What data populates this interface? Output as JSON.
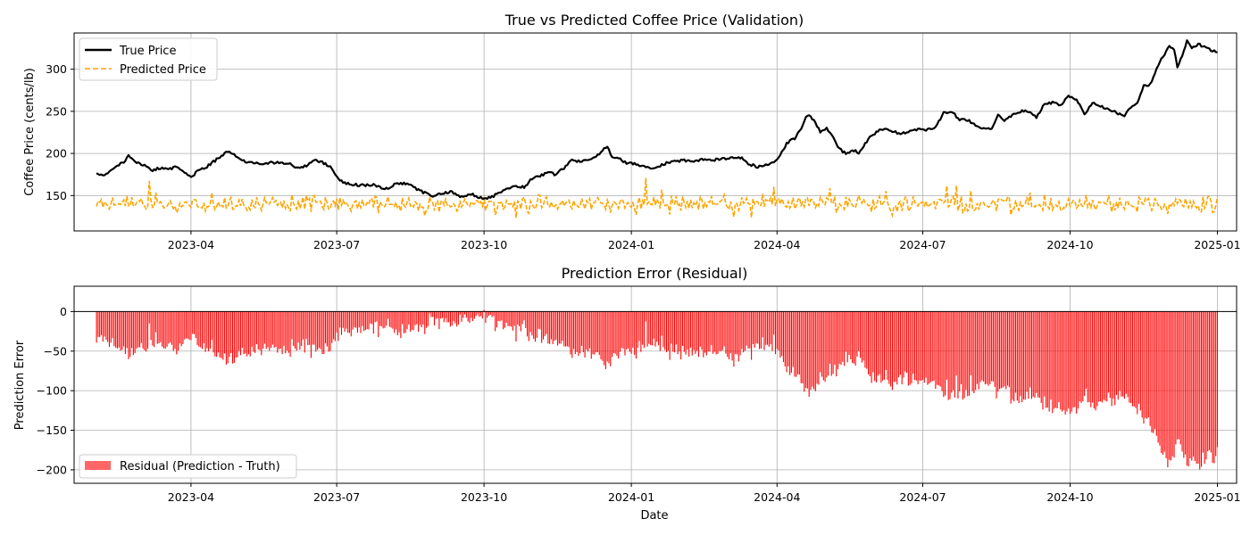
{
  "chart_data": [
    {
      "type": "line",
      "title": "True vs Predicted Coffee Price (Validation)",
      "xlabel": "",
      "ylabel": "Coffee Price (cents/lb)",
      "xlim": [
        "2023-01-18",
        "2025-01-13"
      ],
      "ylim": [
        108,
        343
      ],
      "x_ticks": [
        "2023-04",
        "2023-07",
        "2023-10",
        "2024-01",
        "2024-04",
        "2024-07",
        "2024-10",
        "2025-01"
      ],
      "y_ticks": [
        150,
        200,
        250,
        300
      ],
      "grid": true,
      "legend_position": "upper left",
      "series": [
        {
          "name": "True Price",
          "style": "solid",
          "color": "#000000",
          "points": [
            [
              "2023-02-01",
              176
            ],
            [
              "2023-02-06",
              174
            ],
            [
              "2023-02-10",
              180
            ],
            [
              "2023-02-14",
              186
            ],
            [
              "2023-02-18",
              190
            ],
            [
              "2023-02-21",
              197
            ],
            [
              "2023-02-25",
              190
            ],
            [
              "2023-03-03",
              186
            ],
            [
              "2023-03-08",
              180
            ],
            [
              "2023-03-13",
              183
            ],
            [
              "2023-03-18",
              181
            ],
            [
              "2023-03-23",
              184
            ],
            [
              "2023-03-29",
              177
            ],
            [
              "2023-04-01",
              171
            ],
            [
              "2023-04-05",
              179
            ],
            [
              "2023-04-10",
              183
            ],
            [
              "2023-04-15",
              190
            ],
            [
              "2023-04-20",
              197
            ],
            [
              "2023-04-24",
              203
            ],
            [
              "2023-04-28",
              198
            ],
            [
              "2023-05-04",
              191
            ],
            [
              "2023-05-10",
              189
            ],
            [
              "2023-05-16",
              188
            ],
            [
              "2023-05-22",
              189
            ],
            [
              "2023-05-27",
              190
            ],
            [
              "2023-06-02",
              187
            ],
            [
              "2023-06-07",
              183
            ],
            [
              "2023-06-12",
              185
            ],
            [
              "2023-06-17",
              193
            ],
            [
              "2023-06-22",
              189
            ],
            [
              "2023-06-27",
              185
            ],
            [
              "2023-07-02",
              170
            ],
            [
              "2023-07-07",
              164
            ],
            [
              "2023-07-12",
              163
            ],
            [
              "2023-07-18",
              162
            ],
            [
              "2023-07-24",
              163
            ],
            [
              "2023-07-28",
              160
            ],
            [
              "2023-08-02",
              158
            ],
            [
              "2023-08-06",
              163
            ],
            [
              "2023-08-12",
              165
            ],
            [
              "2023-08-18",
              160
            ],
            [
              "2023-08-24",
              154
            ],
            [
              "2023-08-30",
              150
            ],
            [
              "2023-09-05",
              152
            ],
            [
              "2023-09-10",
              155
            ],
            [
              "2023-09-16",
              148
            ],
            [
              "2023-09-20",
              150
            ],
            [
              "2023-09-24",
              151
            ],
            [
              "2023-09-28",
              148
            ],
            [
              "2023-10-02",
              147
            ],
            [
              "2023-10-06",
              149
            ],
            [
              "2023-10-10",
              152
            ],
            [
              "2023-10-15",
              158
            ],
            [
              "2023-10-20",
              162
            ],
            [
              "2023-10-26",
              160
            ],
            [
              "2023-10-31",
              170
            ],
            [
              "2023-11-05",
              173
            ],
            [
              "2023-11-10",
              177
            ],
            [
              "2023-11-15",
              175
            ],
            [
              "2023-11-20",
              183
            ],
            [
              "2023-11-25",
              193
            ],
            [
              "2023-11-30",
              190
            ],
            [
              "2023-12-05",
              192
            ],
            [
              "2023-12-10",
              197
            ],
            [
              "2023-12-15",
              205
            ],
            [
              "2023-12-17",
              209
            ],
            [
              "2023-12-20",
              195
            ],
            [
              "2023-12-24",
              194
            ],
            [
              "2023-12-29",
              189
            ],
            [
              "2024-01-04",
              187
            ],
            [
              "2024-01-10",
              184
            ],
            [
              "2024-01-16",
              182
            ],
            [
              "2024-01-22",
              188
            ],
            [
              "2024-01-28",
              190
            ],
            [
              "2024-02-03",
              192
            ],
            [
              "2024-02-09",
              191
            ],
            [
              "2024-02-15",
              193
            ],
            [
              "2024-02-21",
              192
            ],
            [
              "2024-02-27",
              194
            ],
            [
              "2024-03-04",
              195
            ],
            [
              "2024-03-10",
              194
            ],
            [
              "2024-03-15",
              187
            ],
            [
              "2024-03-20",
              184
            ],
            [
              "2024-03-25",
              187
            ],
            [
              "2024-03-30",
              189
            ],
            [
              "2024-04-03",
              198
            ],
            [
              "2024-04-07",
              212
            ],
            [
              "2024-04-12",
              218
            ],
            [
              "2024-04-16",
              230
            ],
            [
              "2024-04-20",
              246
            ],
            [
              "2024-04-24",
              240
            ],
            [
              "2024-04-28",
              226
            ],
            [
              "2024-05-02",
              230
            ],
            [
              "2024-05-06",
              220
            ],
            [
              "2024-05-10",
              205
            ],
            [
              "2024-05-14",
              200
            ],
            [
              "2024-05-18",
              204
            ],
            [
              "2024-05-22",
              201
            ],
            [
              "2024-05-26",
              212
            ],
            [
              "2024-05-30",
              221
            ],
            [
              "2024-06-04",
              227
            ],
            [
              "2024-06-09",
              229
            ],
            [
              "2024-06-14",
              225
            ],
            [
              "2024-06-19",
              224
            ],
            [
              "2024-06-24",
              226
            ],
            [
              "2024-06-29",
              229
            ],
            [
              "2024-07-04",
              228
            ],
            [
              "2024-07-09",
              231
            ],
            [
              "2024-07-14",
              248
            ],
            [
              "2024-07-19",
              250
            ],
            [
              "2024-07-24",
              240
            ],
            [
              "2024-07-29",
              240
            ],
            [
              "2024-08-03",
              233
            ],
            [
              "2024-08-08",
              230
            ],
            [
              "2024-08-13",
              228
            ],
            [
              "2024-08-17",
              245
            ],
            [
              "2024-08-21",
              240
            ],
            [
              "2024-08-26",
              245
            ],
            [
              "2024-08-31",
              250
            ],
            [
              "2024-09-05",
              250
            ],
            [
              "2024-09-10",
              242
            ],
            [
              "2024-09-15",
              260
            ],
            [
              "2024-09-20",
              260
            ],
            [
              "2024-09-25",
              257
            ],
            [
              "2024-09-30",
              269
            ],
            [
              "2024-10-05",
              264
            ],
            [
              "2024-10-10",
              246
            ],
            [
              "2024-10-15",
              260
            ],
            [
              "2024-10-20",
              256
            ],
            [
              "2024-10-25",
              253
            ],
            [
              "2024-10-30",
              248
            ],
            [
              "2024-11-04",
              244
            ],
            [
              "2024-11-08",
              255
            ],
            [
              "2024-11-12",
              260
            ],
            [
              "2024-11-16",
              280
            ],
            [
              "2024-11-20",
              282
            ],
            [
              "2024-11-24",
              300
            ],
            [
              "2024-11-28",
              315
            ],
            [
              "2024-12-02",
              328
            ],
            [
              "2024-12-05",
              322
            ],
            [
              "2024-12-07",
              303
            ],
            [
              "2024-12-10",
              315
            ],
            [
              "2024-12-13",
              334
            ],
            [
              "2024-12-16",
              325
            ],
            [
              "2024-12-20",
              330
            ],
            [
              "2024-12-24",
              326
            ],
            [
              "2024-12-28",
              323
            ],
            [
              "2025-01-01",
              320
            ]
          ]
        },
        {
          "name": "Predicted Price",
          "style": "dashed",
          "color": "#ffa500",
          "start": "2023-02-01",
          "end": "2025-01-01",
          "mean": 140,
          "spread": 10,
          "min": 121,
          "max": 171
        }
      ]
    },
    {
      "type": "bar",
      "title": "Prediction Error (Residual)",
      "xlabel": "Date",
      "ylabel": "Prediction Error",
      "xlim": [
        "2023-01-18",
        "2025-01-13"
      ],
      "ylim": [
        -217,
        32
      ],
      "x_ticks": [
        "2023-04",
        "2023-07",
        "2023-10",
        "2024-01",
        "2024-04",
        "2024-07",
        "2024-10",
        "2025-01"
      ],
      "y_ticks": [
        0,
        -50,
        -100,
        -150,
        -200
      ],
      "grid": true,
      "legend_position": "lower left",
      "series": [
        {
          "name": "Residual (Prediction - Truth)",
          "color": "#ff0000",
          "legend_color": "#ff6666",
          "definition": "Predicted Price - True Price"
        }
      ]
    }
  ]
}
